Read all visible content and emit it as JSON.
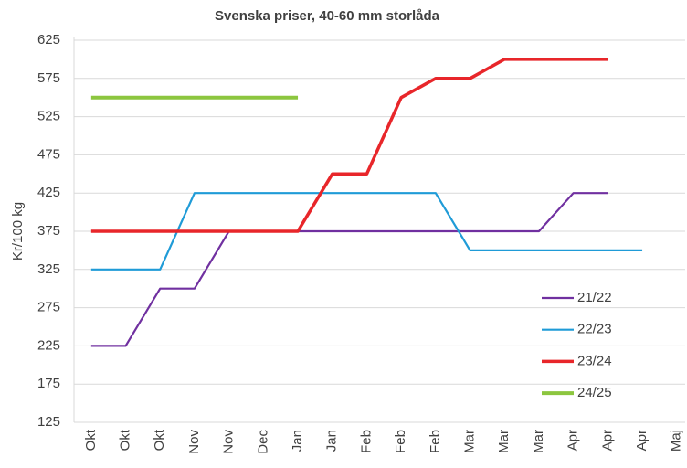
{
  "chart_data": {
    "type": "line",
    "title": "Svenska priser, 40-60 mm storlåda",
    "y_label": "Kr/100 kg",
    "categories": [
      "Okt",
      "Okt",
      "Okt",
      "Nov",
      "Nov",
      "Dec",
      "Jan",
      "Jan",
      "Feb",
      "Feb",
      "Feb",
      "Mar",
      "Mar",
      "Mar",
      "Apr",
      "Apr",
      "Apr",
      "Maj"
    ],
    "series": [
      {
        "name": "21/22",
        "color": "#7030a0",
        "width": 2.2,
        "values": [
          225,
          225,
          300,
          300,
          375,
          375,
          375,
          375,
          375,
          375,
          375,
          375,
          375,
          375,
          425,
          425,
          null,
          null
        ]
      },
      {
        "name": "22/23",
        "color": "#1f9bd7",
        "width": 2.2,
        "values": [
          325,
          325,
          325,
          425,
          425,
          425,
          425,
          425,
          425,
          425,
          425,
          350,
          350,
          350,
          350,
          350,
          350,
          null
        ]
      },
      {
        "name": "23/24",
        "color": "#e8262a",
        "width": 3.5,
        "values": [
          375,
          375,
          375,
          375,
          375,
          375,
          375,
          450,
          450,
          550,
          575,
          575,
          600,
          600,
          600,
          600,
          null,
          null
        ]
      },
      {
        "name": "24/25",
        "color": "#8cc63f",
        "width": 4,
        "values": [
          550,
          550,
          550,
          550,
          550,
          550,
          550,
          null,
          null,
          null,
          null,
          null,
          null,
          null,
          null,
          null,
          null,
          null
        ]
      }
    ],
    "ylim": [
      125,
      625
    ],
    "yticks": [
      125,
      175,
      225,
      275,
      325,
      375,
      425,
      475,
      525,
      575,
      625
    ],
    "grid": true,
    "legend": "lower right"
  }
}
